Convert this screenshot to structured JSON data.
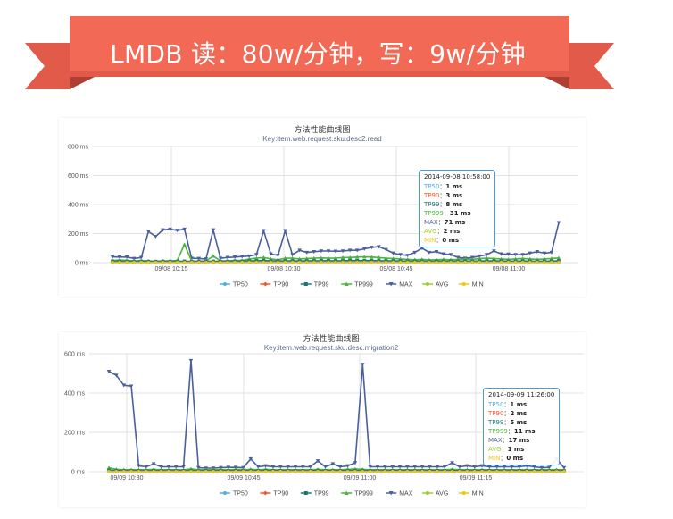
{
  "banner": {
    "title": "LMDB 读：80w/分钟，写：9w/分钟"
  },
  "colors": {
    "ribbon": "#f26a55",
    "ribbon_dark": "#c9473a",
    "ribbon_tail": "#e25a49",
    "TP50": "#4fb0e2",
    "TP90": "#f0582c",
    "TP99": "#157a72",
    "TP999": "#4db33d",
    "MAX": "#4a5f9c",
    "AVG": "#9ccc2c",
    "MIN": "#f2c318"
  },
  "chart_data": [
    {
      "type": "line",
      "title": "方法性能曲线图",
      "subtitle": "Key:item.web.request.sku.desc2.read",
      "ylim": [
        0,
        800
      ],
      "yticks": [
        "800 ms",
        "600 ms",
        "400 ms",
        "200 ms",
        "0 ms"
      ],
      "xticks": [
        "09/08 10:15",
        "09/08 10:30",
        "09/08 10:45",
        "09/08 11:00"
      ],
      "legend": [
        "TP50",
        "TP90",
        "TP99",
        "TP999",
        "MAX",
        "AVG",
        "MIN"
      ],
      "legend_position": "bottom",
      "series": [
        {
          "name": "MAX",
          "values": [
            40,
            38,
            38,
            28,
            35,
            215,
            180,
            225,
            230,
            222,
            230,
            30,
            28,
            25,
            225,
            30,
            35,
            38,
            42,
            45,
            55,
            220,
            60,
            50,
            220,
            55,
            85,
            70,
            75,
            80,
            80,
            78,
            80,
            85,
            85,
            95,
            105,
            110,
            90,
            65,
            55,
            50,
            70,
            100,
            70,
            75,
            60,
            55,
            35,
            30,
            35,
            45,
            55,
            80,
            60,
            58,
            55,
            55,
            65,
            75,
            65,
            70,
            275
          ]
        },
        {
          "name": "TP999",
          "values": [
            15,
            18,
            15,
            12,
            14,
            12,
            10,
            12,
            12,
            14,
            125,
            12,
            10,
            12,
            45,
            12,
            12,
            15,
            15,
            25,
            30,
            35,
            25,
            20,
            30,
            30,
            25,
            28,
            30,
            32,
            30,
            30,
            35,
            35,
            38,
            40,
            38,
            35,
            30,
            28,
            25,
            22,
            20,
            22,
            18,
            20,
            22,
            20,
            22,
            25,
            22,
            28,
            30,
            28,
            25,
            22,
            25,
            28,
            25,
            22,
            25,
            28,
            32
          ]
        },
        {
          "name": "TP99",
          "values": [
            10,
            10,
            9,
            8,
            9,
            8,
            8,
            9,
            8,
            9,
            10,
            8,
            8,
            9,
            10,
            9,
            9,
            10,
            10,
            12,
            13,
            14,
            12,
            11,
            12,
            12,
            11,
            12,
            12,
            13,
            13,
            12,
            13,
            14,
            14,
            14,
            14,
            13,
            12,
            12,
            11,
            10,
            10,
            10,
            9,
            10,
            10,
            10,
            10,
            11,
            10,
            11,
            12,
            12,
            11,
            10,
            10,
            11,
            10,
            10,
            10,
            11,
            12
          ]
        },
        {
          "name": "TP90",
          "values": [
            3,
            3,
            3,
            3,
            3,
            3,
            3,
            3,
            3,
            3,
            3,
            3,
            3,
            3,
            3,
            3,
            3,
            3,
            3,
            3,
            3,
            3,
            3,
            3,
            3,
            3,
            3,
            3,
            3,
            3,
            3,
            3,
            3,
            3,
            3,
            3,
            3,
            3,
            3,
            3,
            3,
            3,
            3,
            3,
            3,
            3,
            3,
            3,
            3,
            3,
            3,
            3,
            3,
            3,
            3,
            3,
            3,
            3,
            3,
            3,
            3,
            3,
            3
          ]
        },
        {
          "name": "AVG",
          "values": [
            2,
            2,
            2,
            2,
            2,
            2,
            2,
            2,
            2,
            2,
            2,
            2,
            2,
            2,
            2,
            2,
            2,
            2,
            2,
            2,
            2,
            2,
            2,
            2,
            2,
            2,
            2,
            2,
            2,
            2,
            2,
            2,
            2,
            2,
            2,
            2,
            2,
            2,
            2,
            2,
            2,
            2,
            2,
            2,
            2,
            2,
            2,
            2,
            2,
            2,
            2,
            2,
            2,
            2,
            2,
            2,
            2,
            2,
            2,
            2,
            2,
            2,
            2
          ]
        },
        {
          "name": "TP50",
          "values": [
            1,
            1,
            1,
            1,
            1,
            1,
            1,
            1,
            1,
            1,
            1,
            1,
            1,
            1,
            1,
            1,
            1,
            1,
            1,
            1,
            1,
            1,
            1,
            1,
            1,
            1,
            1,
            1,
            1,
            1,
            1,
            1,
            1,
            1,
            1,
            1,
            1,
            1,
            1,
            1,
            1,
            1,
            1,
            1,
            1,
            1,
            1,
            1,
            1,
            1,
            1,
            1,
            1,
            1,
            1,
            1,
            1,
            1,
            1,
            1,
            1,
            1,
            1
          ]
        },
        {
          "name": "MIN",
          "values": [
            0,
            0,
            0,
            0,
            0,
            0,
            0,
            0,
            0,
            0,
            0,
            0,
            0,
            0,
            0,
            0,
            0,
            0,
            0,
            0,
            0,
            0,
            0,
            0,
            0,
            0,
            0,
            0,
            0,
            0,
            0,
            0,
            0,
            0,
            0,
            0,
            0,
            0,
            0,
            0,
            0,
            0,
            0,
            0,
            0,
            0,
            0,
            0,
            0,
            0,
            0,
            0,
            0,
            0,
            0,
            0,
            0,
            0,
            0,
            0,
            0,
            0,
            0
          ]
        }
      ],
      "tooltip": {
        "time": "2014-09-08 10:58:00",
        "rows": [
          {
            "name": "TP50",
            "value": "1 ms"
          },
          {
            "name": "TP90",
            "value": "3 ms"
          },
          {
            "name": "TP99",
            "value": "8 ms"
          },
          {
            "name": "TP999",
            "value": "31 ms"
          },
          {
            "name": "MAX",
            "value": "71 ms"
          },
          {
            "name": "AVG",
            "value": "2 ms"
          },
          {
            "name": "MIN",
            "value": "0 ms"
          }
        ]
      }
    },
    {
      "type": "line",
      "title": "方法性能曲线图",
      "subtitle": "Key:item.web.request.sku.desc.migration2",
      "ylim": [
        0,
        600
      ],
      "yticks": [
        "600 ms",
        "400 ms",
        "200 ms",
        "0 ms"
      ],
      "xticks": [
        "09/09 10:30",
        "09/09 10:45",
        "09/09 11:00",
        "09/09 11:15"
      ],
      "legend": [
        "TP50",
        "TP90",
        "TP99",
        "TP999",
        "MAX",
        "AVG",
        "MIN"
      ],
      "legend_position": "bottom",
      "series": [
        {
          "name": "MAX",
          "values": [
            510,
            490,
            440,
            435,
            30,
            25,
            40,
            25,
            25,
            25,
            25,
            565,
            20,
            18,
            18,
            20,
            22,
            22,
            20,
            65,
            25,
            30,
            25,
            25,
            25,
            25,
            25,
            25,
            55,
            25,
            40,
            25,
            30,
            45,
            545,
            25,
            25,
            25,
            25,
            25,
            25,
            25,
            25,
            25,
            25,
            25,
            45,
            25,
            30,
            25,
            30,
            25,
            25,
            25,
            25,
            25,
            30,
            25,
            20,
            22,
            65,
            20
          ]
        },
        {
          "name": "TP999",
          "values": [
            20,
            12,
            10,
            10,
            10,
            10,
            12,
            10,
            10,
            10,
            10,
            14,
            10,
            10,
            10,
            10,
            10,
            12,
            10,
            12,
            10,
            12,
            10,
            10,
            10,
            10,
            10,
            10,
            12,
            10,
            10,
            10,
            12,
            14,
            12,
            10,
            10,
            10,
            10,
            10,
            10,
            10,
            10,
            10,
            10,
            10,
            12,
            10,
            10,
            10,
            10,
            10,
            10,
            10,
            10,
            10,
            10,
            10,
            10,
            10,
            10,
            10
          ]
        },
        {
          "name": "TP99",
          "values": [
            8,
            6,
            5,
            5,
            5,
            5,
            6,
            5,
            5,
            5,
            5,
            6,
            5,
            5,
            5,
            5,
            5,
            6,
            5,
            6,
            5,
            6,
            5,
            5,
            5,
            5,
            5,
            5,
            6,
            5,
            5,
            5,
            6,
            6,
            6,
            5,
            5,
            5,
            5,
            5,
            5,
            5,
            5,
            5,
            5,
            5,
            6,
            5,
            5,
            5,
            5,
            5,
            5,
            5,
            5,
            5,
            5,
            5,
            5,
            5,
            5,
            5
          ]
        },
        {
          "name": "TP90",
          "values": [
            2,
            2,
            2,
            2,
            2,
            2,
            2,
            2,
            2,
            2,
            2,
            2,
            2,
            2,
            2,
            2,
            2,
            2,
            2,
            2,
            2,
            2,
            2,
            2,
            2,
            2,
            2,
            2,
            2,
            2,
            2,
            2,
            2,
            2,
            2,
            2,
            2,
            2,
            2,
            2,
            2,
            2,
            2,
            2,
            2,
            2,
            2,
            2,
            2,
            2,
            2,
            2,
            2,
            2,
            2,
            2,
            2,
            2,
            2,
            2,
            2,
            2
          ]
        },
        {
          "name": "AVG",
          "values": [
            1,
            1,
            1,
            1,
            1,
            1,
            1,
            1,
            1,
            1,
            1,
            1,
            1,
            1,
            1,
            1,
            1,
            1,
            1,
            1,
            1,
            1,
            1,
            1,
            1,
            1,
            1,
            1,
            1,
            1,
            1,
            1,
            1,
            1,
            1,
            1,
            1,
            1,
            1,
            1,
            1,
            1,
            1,
            1,
            1,
            1,
            1,
            1,
            1,
            1,
            1,
            1,
            1,
            1,
            1,
            1,
            1,
            1,
            1,
            1,
            1,
            1
          ]
        },
        {
          "name": "TP50",
          "values": [
            1,
            1,
            1,
            1,
            1,
            1,
            1,
            1,
            1,
            1,
            1,
            1,
            1,
            1,
            1,
            1,
            1,
            1,
            1,
            1,
            1,
            1,
            1,
            1,
            1,
            1,
            1,
            1,
            1,
            1,
            1,
            1,
            1,
            1,
            1,
            1,
            1,
            1,
            1,
            1,
            1,
            1,
            1,
            1,
            1,
            1,
            1,
            1,
            1,
            1,
            1,
            1,
            1,
            1,
            1,
            1,
            1,
            1,
            1,
            1,
            1,
            1
          ]
        },
        {
          "name": "MIN",
          "values": [
            0,
            0,
            0,
            0,
            0,
            0,
            0,
            0,
            0,
            0,
            0,
            0,
            0,
            0,
            0,
            0,
            0,
            0,
            0,
            0,
            0,
            0,
            0,
            0,
            0,
            0,
            0,
            0,
            0,
            0,
            0,
            0,
            0,
            0,
            0,
            0,
            0,
            0,
            0,
            0,
            0,
            0,
            0,
            0,
            0,
            0,
            0,
            0,
            0,
            0,
            0,
            0,
            0,
            0,
            0,
            0,
            0,
            0,
            0,
            0,
            0,
            0
          ]
        }
      ],
      "tooltip": {
        "time": "2014-09-09 11:26:00",
        "rows": [
          {
            "name": "TP50",
            "value": "1 ms"
          },
          {
            "name": "TP90",
            "value": "2 ms"
          },
          {
            "name": "TP99",
            "value": "5 ms"
          },
          {
            "name": "TP999",
            "value": "11 ms"
          },
          {
            "name": "MAX",
            "value": "17 ms"
          },
          {
            "name": "AVG",
            "value": "1 ms"
          },
          {
            "name": "MIN",
            "value": "0 ms"
          }
        ]
      }
    }
  ]
}
